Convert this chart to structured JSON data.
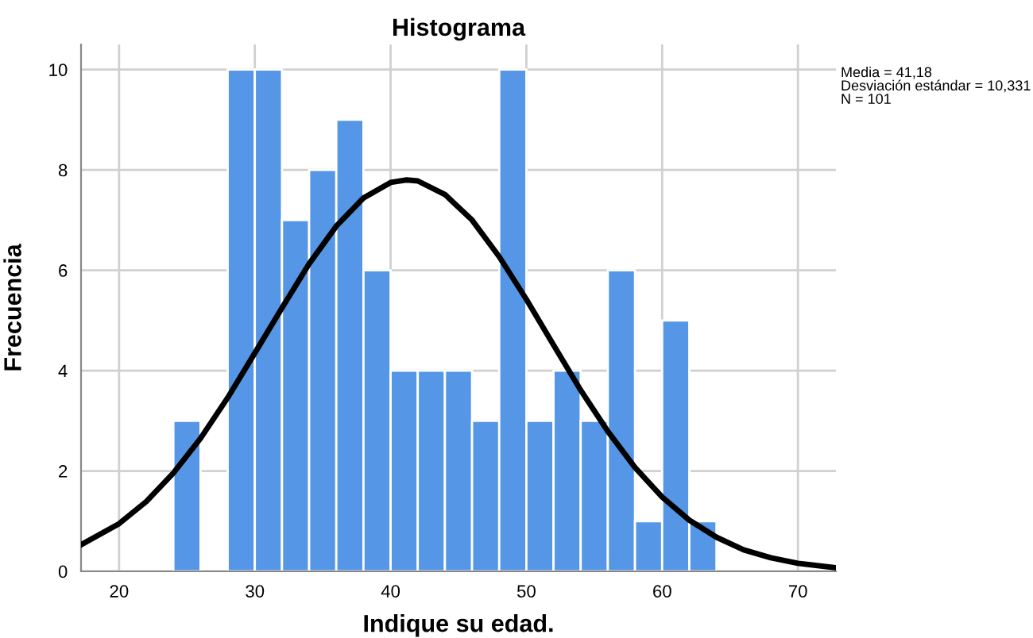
{
  "chart_data": {
    "type": "histogram",
    "title": "Histograma",
    "xlabel": "Indique su edad.",
    "ylabel": "Frecuencia",
    "series": [
      {
        "color": "#5596e6",
        "bins": [
          24,
          26,
          28,
          30,
          32,
          34,
          36,
          38,
          40,
          42,
          44,
          46,
          48,
          50,
          52,
          54,
          56,
          58,
          60,
          62,
          64
        ],
        "values": [
          3,
          0,
          10,
          10,
          7,
          8,
          9,
          6,
          4,
          4,
          4,
          3,
          10,
          3,
          4,
          3,
          6,
          1,
          5,
          1
        ]
      },
      {
        "type": "line",
        "color": "#000000",
        "x": [
          17.2,
          20,
          22,
          24,
          26,
          28,
          30,
          32,
          34,
          36,
          38,
          40,
          41.18,
          42,
          44,
          46,
          48,
          50,
          52,
          54,
          56,
          58,
          60,
          62,
          64,
          66,
          68,
          70,
          72.8
        ],
        "values": [
          0.53,
          0.95,
          1.39,
          1.96,
          2.65,
          3.46,
          4.35,
          5.25,
          6.13,
          6.88,
          7.44,
          7.75,
          7.8,
          7.78,
          7.51,
          7.0,
          6.27,
          5.42,
          4.51,
          3.61,
          2.79,
          2.07,
          1.48,
          1.02,
          0.68,
          0.43,
          0.27,
          0.16,
          0.07
        ]
      }
    ],
    "xlim": [
      17.2,
      72.8
    ],
    "xticks": [
      20,
      30,
      40,
      50,
      60,
      70
    ],
    "ylim": [
      0,
      10.5
    ],
    "yticks": [
      0,
      2,
      4,
      6,
      8,
      10
    ],
    "grid": true,
    "annotations": [
      "Media = 41,18\nDesviación estándar = 10,331\nN = 101"
    ]
  }
}
